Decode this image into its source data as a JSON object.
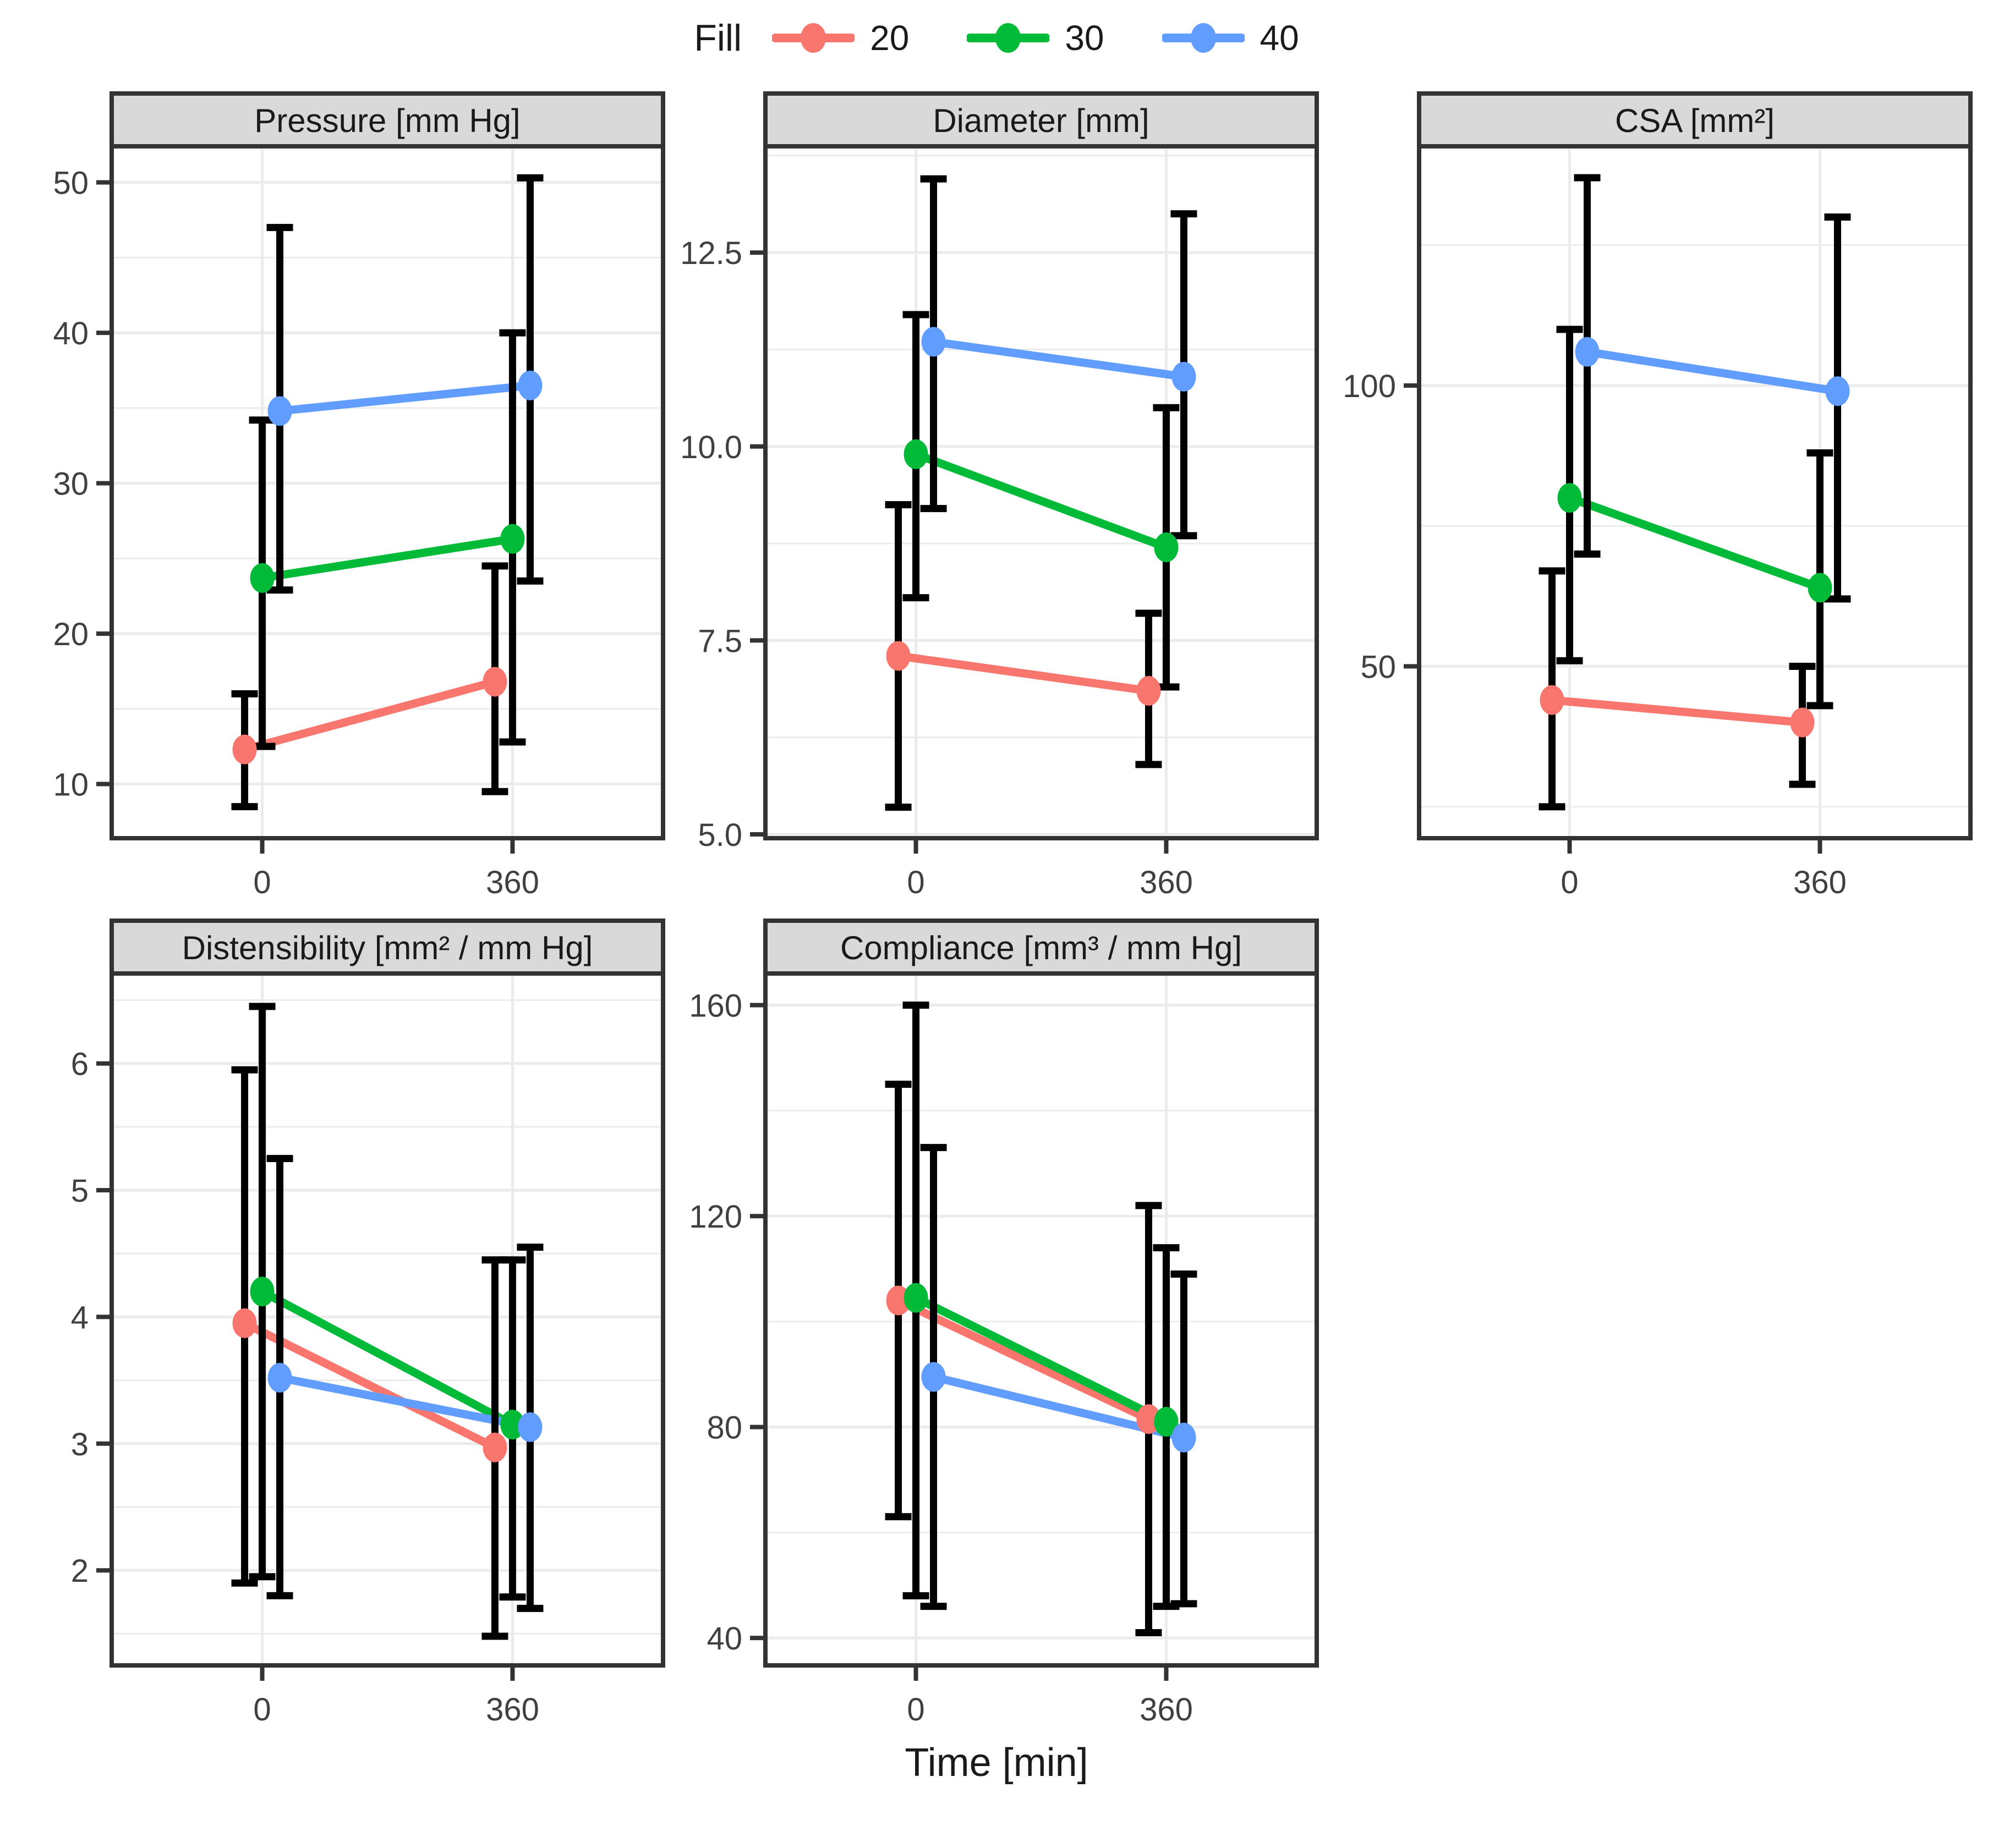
{
  "legend": {
    "title": "Fill",
    "items": [
      {
        "label": "20",
        "color": "#F8766D"
      },
      {
        "label": "30",
        "color": "#00BA38"
      },
      {
        "label": "40",
        "color": "#619CFF"
      }
    ]
  },
  "axis": {
    "x_title": "Time [min]",
    "x_categories": [
      "0",
      "360"
    ]
  },
  "style": {
    "strip_fill": "#D9D9D9",
    "border_color": "#333333",
    "grid_color": "#EBEBEB",
    "errorbar_color": "#000000",
    "tick_label_color": "#404040",
    "strip_text_color": "#1a1a1a"
  },
  "chart_data": [
    {
      "type": "line",
      "key": "pressure",
      "title": "Pressure [mm Hg]",
      "x": [
        "0",
        "360"
      ],
      "ylim": [
        6.4,
        52.4
      ],
      "yticks": [
        {
          "v": 10,
          "label": "10"
        },
        {
          "v": 20,
          "label": "20"
        },
        {
          "v": 30,
          "label": "30"
        },
        {
          "v": 40,
          "label": "40"
        },
        {
          "v": 50,
          "label": "50"
        }
      ],
      "yminor": [
        15,
        25,
        35,
        45
      ],
      "series": [
        {
          "name": "20",
          "means": [
            12.3,
            16.8
          ],
          "lower": [
            8.5,
            9.5
          ],
          "upper": [
            16.0,
            24.5
          ]
        },
        {
          "name": "30",
          "means": [
            23.7,
            26.3
          ],
          "lower": [
            12.5,
            12.8
          ],
          "upper": [
            34.2,
            40.0
          ]
        },
        {
          "name": "40",
          "means": [
            34.8,
            36.5
          ],
          "lower": [
            22.9,
            23.5
          ],
          "upper": [
            47.0,
            50.3
          ]
        }
      ]
    },
    {
      "type": "line",
      "key": "diameter",
      "title": "Diameter [mm]",
      "x": [
        "0",
        "360"
      ],
      "ylim": [
        4.95,
        13.87
      ],
      "yticks": [
        {
          "v": 5.0,
          "label": "5.0"
        },
        {
          "v": 7.5,
          "label": "7.5"
        },
        {
          "v": 10.0,
          "label": "10.0"
        },
        {
          "v": 12.5,
          "label": "12.5"
        }
      ],
      "yminor": [
        6.25,
        8.75,
        11.25,
        13.75
      ],
      "series": [
        {
          "name": "20",
          "means": [
            7.3,
            6.85
          ],
          "lower": [
            5.35,
            5.9
          ],
          "upper": [
            9.25,
            7.85
          ]
        },
        {
          "name": "30",
          "means": [
            9.9,
            8.7
          ],
          "lower": [
            8.05,
            6.9
          ],
          "upper": [
            11.7,
            10.5
          ]
        },
        {
          "name": "40",
          "means": [
            11.35,
            10.9
          ],
          "lower": [
            9.2,
            8.85
          ],
          "upper": [
            13.45,
            13.0
          ]
        }
      ]
    },
    {
      "type": "line",
      "key": "csa",
      "title": "CSA [mm²]",
      "x": [
        "0",
        "360"
      ],
      "ylim": [
        19.4,
        142.6
      ],
      "yticks": [
        {
          "v": 50,
          "label": "50"
        },
        {
          "v": 100,
          "label": "100"
        }
      ],
      "yminor": [
        25,
        75,
        125
      ],
      "series": [
        {
          "name": "20",
          "means": [
            44,
            40
          ],
          "lower": [
            25,
            29
          ],
          "upper": [
            67,
            50
          ]
        },
        {
          "name": "30",
          "means": [
            80,
            64
          ],
          "lower": [
            51,
            43
          ],
          "upper": [
            110,
            88
          ]
        },
        {
          "name": "40",
          "means": [
            106,
            99
          ],
          "lower": [
            70,
            62
          ],
          "upper": [
            137,
            130
          ]
        }
      ]
    },
    {
      "type": "line",
      "key": "distensibility",
      "title": "Distensibility [mm² / mm Hg]",
      "x": [
        "0",
        "360"
      ],
      "ylim": [
        1.25,
        6.71
      ],
      "yticks": [
        {
          "v": 2,
          "label": "2"
        },
        {
          "v": 3,
          "label": "3"
        },
        {
          "v": 4,
          "label": "4"
        },
        {
          "v": 5,
          "label": "5"
        },
        {
          "v": 6,
          "label": "6"
        }
      ],
      "yminor": [
        1.5,
        2.5,
        3.5,
        4.5,
        5.5,
        6.5
      ],
      "series": [
        {
          "name": "20",
          "means": [
            3.95,
            2.97
          ],
          "lower": [
            1.9,
            1.48
          ],
          "upper": [
            5.95,
            4.45
          ]
        },
        {
          "name": "30",
          "means": [
            4.2,
            3.15
          ],
          "lower": [
            1.95,
            1.79
          ],
          "upper": [
            6.45,
            4.45
          ]
        },
        {
          "name": "40",
          "means": [
            3.52,
            3.13
          ],
          "lower": [
            1.8,
            1.7
          ],
          "upper": [
            5.25,
            4.55
          ]
        }
      ]
    },
    {
      "type": "line",
      "key": "compliance",
      "title": "Compliance [mm³ / mm Hg]",
      "x": [
        "0",
        "360"
      ],
      "ylim": [
        34.8,
        166.0
      ],
      "yticks": [
        {
          "v": 40,
          "label": "40"
        },
        {
          "v": 80,
          "label": "80"
        },
        {
          "v": 120,
          "label": "120"
        },
        {
          "v": 160,
          "label": "160"
        }
      ],
      "yminor": [
        60,
        100,
        140
      ],
      "series": [
        {
          "name": "20",
          "means": [
            104,
            81.5
          ],
          "lower": [
            63,
            41
          ],
          "upper": [
            145,
            122
          ]
        },
        {
          "name": "30",
          "means": [
            104.5,
            81
          ],
          "lower": [
            48,
            46
          ],
          "upper": [
            160,
            114
          ]
        },
        {
          "name": "40",
          "means": [
            89.5,
            78
          ],
          "lower": [
            46,
            46.5
          ],
          "upper": [
            133,
            109
          ]
        }
      ]
    }
  ]
}
